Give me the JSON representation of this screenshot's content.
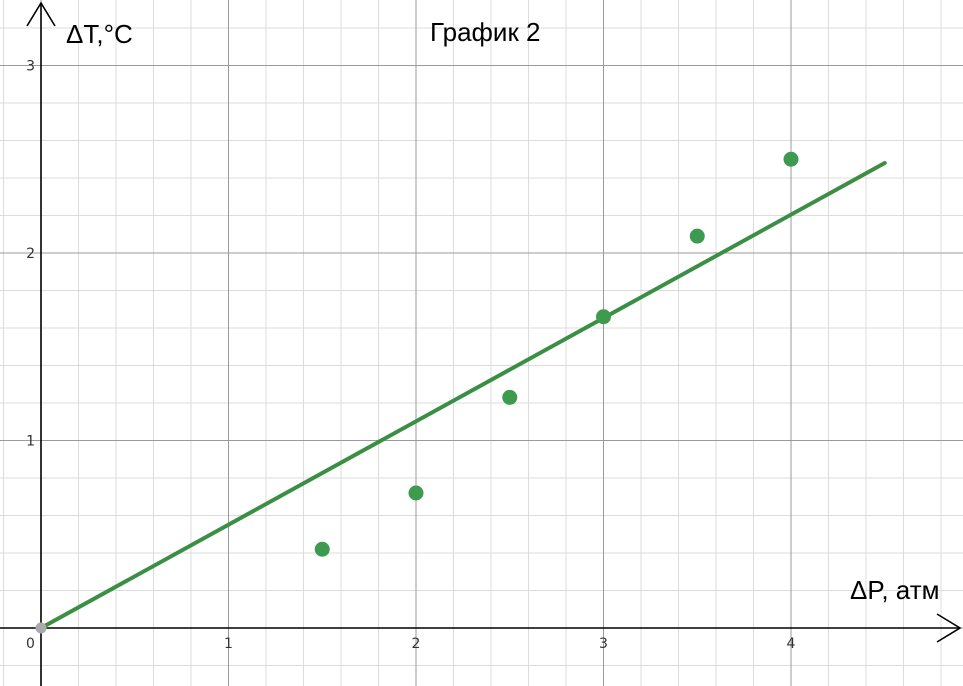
{
  "chart_data": {
    "type": "scatter",
    "title": "График 2",
    "xlabel": "ΔP, атм",
    "ylabel": "ΔT,°C",
    "xlim": [
      0,
      4.5
    ],
    "ylim": [
      0,
      3
    ],
    "x_ticks": [
      "1",
      "2",
      "3",
      "4"
    ],
    "y_ticks": [
      "1",
      "2",
      "3"
    ],
    "origin_label": "0",
    "grid": true,
    "points": [
      {
        "x": 1.5,
        "y": 0.42
      },
      {
        "x": 2.0,
        "y": 0.72
      },
      {
        "x": 2.5,
        "y": 1.23
      },
      {
        "x": 3.0,
        "y": 1.66
      },
      {
        "x": 3.5,
        "y": 2.09
      },
      {
        "x": 4.0,
        "y": 2.5
      }
    ],
    "fit_line": {
      "x": [
        0,
        4.5
      ],
      "y": [
        0,
        2.48
      ]
    },
    "colors": {
      "points": "#3d9a4f",
      "line": "#3a8f45",
      "grid_major": "#9a9a9a",
      "grid_minor": "#dcdcdc",
      "origin": "#aaaaaa"
    }
  }
}
